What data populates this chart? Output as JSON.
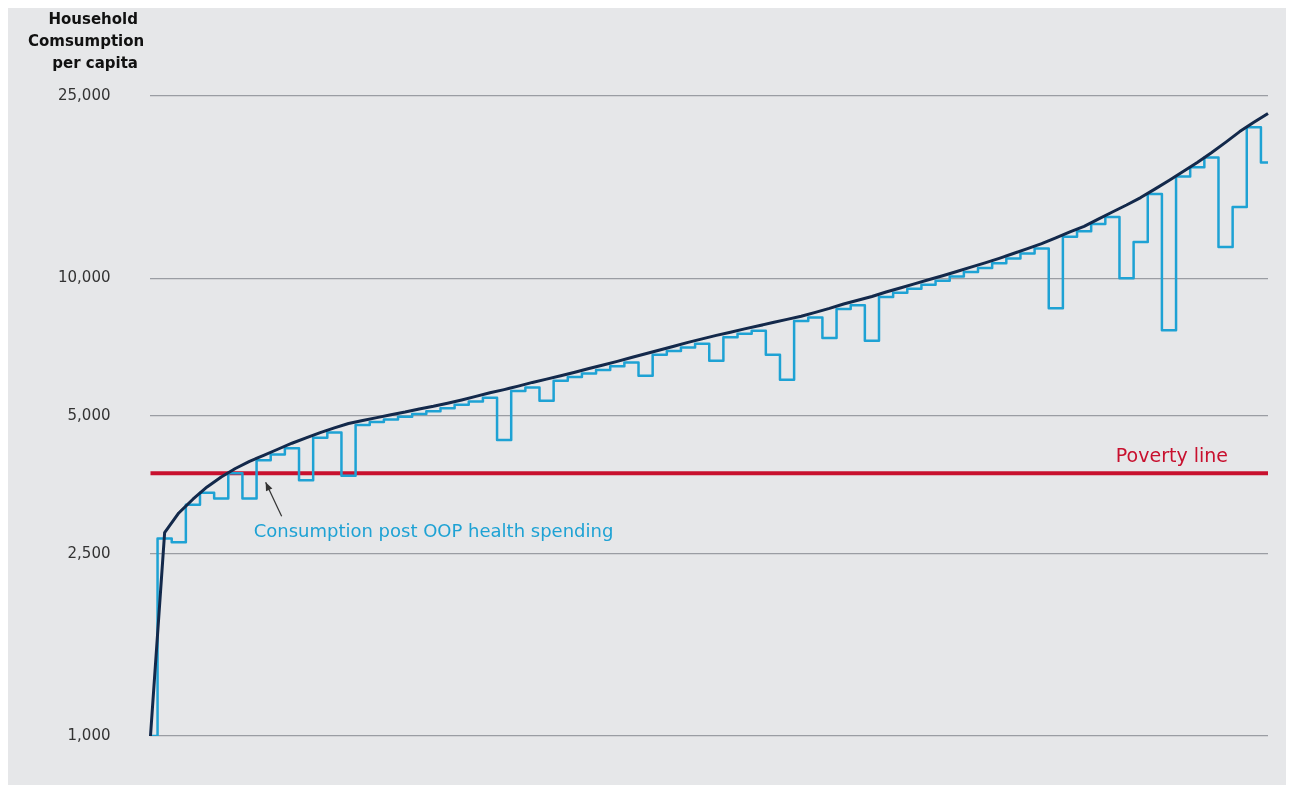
{
  "chart_data": {
    "type": "line",
    "ylabel": "Household Comsumption per capita",
    "categories": [
      null,
      null,
      null,
      null,
      null,
      null,
      null,
      null,
      null,
      null,
      null,
      null,
      null,
      null,
      null,
      null,
      null,
      null,
      null,
      null,
      null,
      null,
      null,
      null,
      null,
      null,
      null,
      null,
      null,
      null,
      null,
      null,
      null,
      null,
      null,
      null,
      null,
      null,
      null,
      null,
      null,
      null,
      null,
      null,
      null,
      null,
      null,
      null,
      null,
      null,
      null,
      null,
      null,
      null,
      null,
      null,
      null,
      null,
      null,
      null,
      null,
      null,
      null,
      null,
      null,
      null,
      null,
      null,
      null,
      null,
      null,
      null,
      null,
      null,
      null,
      null,
      null,
      null,
      null,
      null
    ],
    "series": [
      {
        "name": "Consumption post OOP health spending",
        "type": "step",
        "color": "#1ea2d4",
        "values": [
          1000,
          2700,
          2650,
          3200,
          3400,
          3300,
          3750,
          3300,
          4000,
          4120,
          4250,
          3620,
          4480,
          4600,
          3700,
          4780,
          4850,
          4910,
          4980,
          5050,
          5120,
          5200,
          5290,
          5380,
          5480,
          4430,
          5670,
          5770,
          5400,
          5970,
          6080,
          6190,
          6300,
          6420,
          6540,
          6120,
          6800,
          6930,
          7060,
          7190,
          6600,
          7430,
          7560,
          7680,
          6800,
          6000,
          8060,
          8210,
          7400,
          8560,
          8730,
          7300,
          9100,
          9290,
          9480,
          9680,
          9870,
          10090,
          10310,
          10530,
          10780,
          11040,
          11320,
          11610,
          8600,
          12310,
          12660,
          13130,
          13610,
          10000,
          12000,
          15270,
          7700,
          16680,
          17460,
          18340,
          11700,
          14300,
          21360,
          17900
        ]
      },
      {
        "color": "#13294b",
        "values": [
          1000,
          2780,
          3070,
          3290,
          3500,
          3680,
          3840,
          3980,
          4100,
          4230,
          4360,
          4480,
          4600,
          4710,
          4815,
          4890,
          4960,
          5030,
          5100,
          5180,
          5250,
          5330,
          5420,
          5520,
          5620,
          5710,
          5810,
          5920,
          6020,
          6120,
          6230,
          6350,
          6460,
          6580,
          6710,
          6840,
          6970,
          7100,
          7240,
          7370,
          7500,
          7620,
          7750,
          7870,
          8000,
          8130,
          8260,
          8420,
          8590,
          8780,
          8950,
          9120,
          9330,
          9520,
          9720,
          9920,
          10120,
          10340,
          10570,
          10800,
          11050,
          11320,
          11600,
          11900,
          12250,
          12620,
          12980,
          13460,
          13950,
          14450,
          15000,
          15650,
          16350,
          17100,
          17900,
          18800,
          19800,
          20900,
          21900,
          22900
        ]
      }
    ],
    "log": "y",
    "ylim": [
      1000,
      25000
    ],
    "yticks": [
      {
        "value": 1000,
        "label": "1,000"
      },
      {
        "value": 2500,
        "label": "2,500"
      },
      {
        "value": 5000,
        "label": "5,000"
      },
      {
        "value": 10000,
        "label": "10,000"
      },
      {
        "value": 25000,
        "label": "25,000"
      }
    ],
    "grid": "y",
    "legend": false,
    "tick_labels": "y",
    "marker": "none",
    "line_style": "solid",
    "ref_lines": [
      {
        "axis": "y",
        "value": 3750,
        "label": "Poverty line",
        "color": "#c8102e"
      }
    ]
  }
}
